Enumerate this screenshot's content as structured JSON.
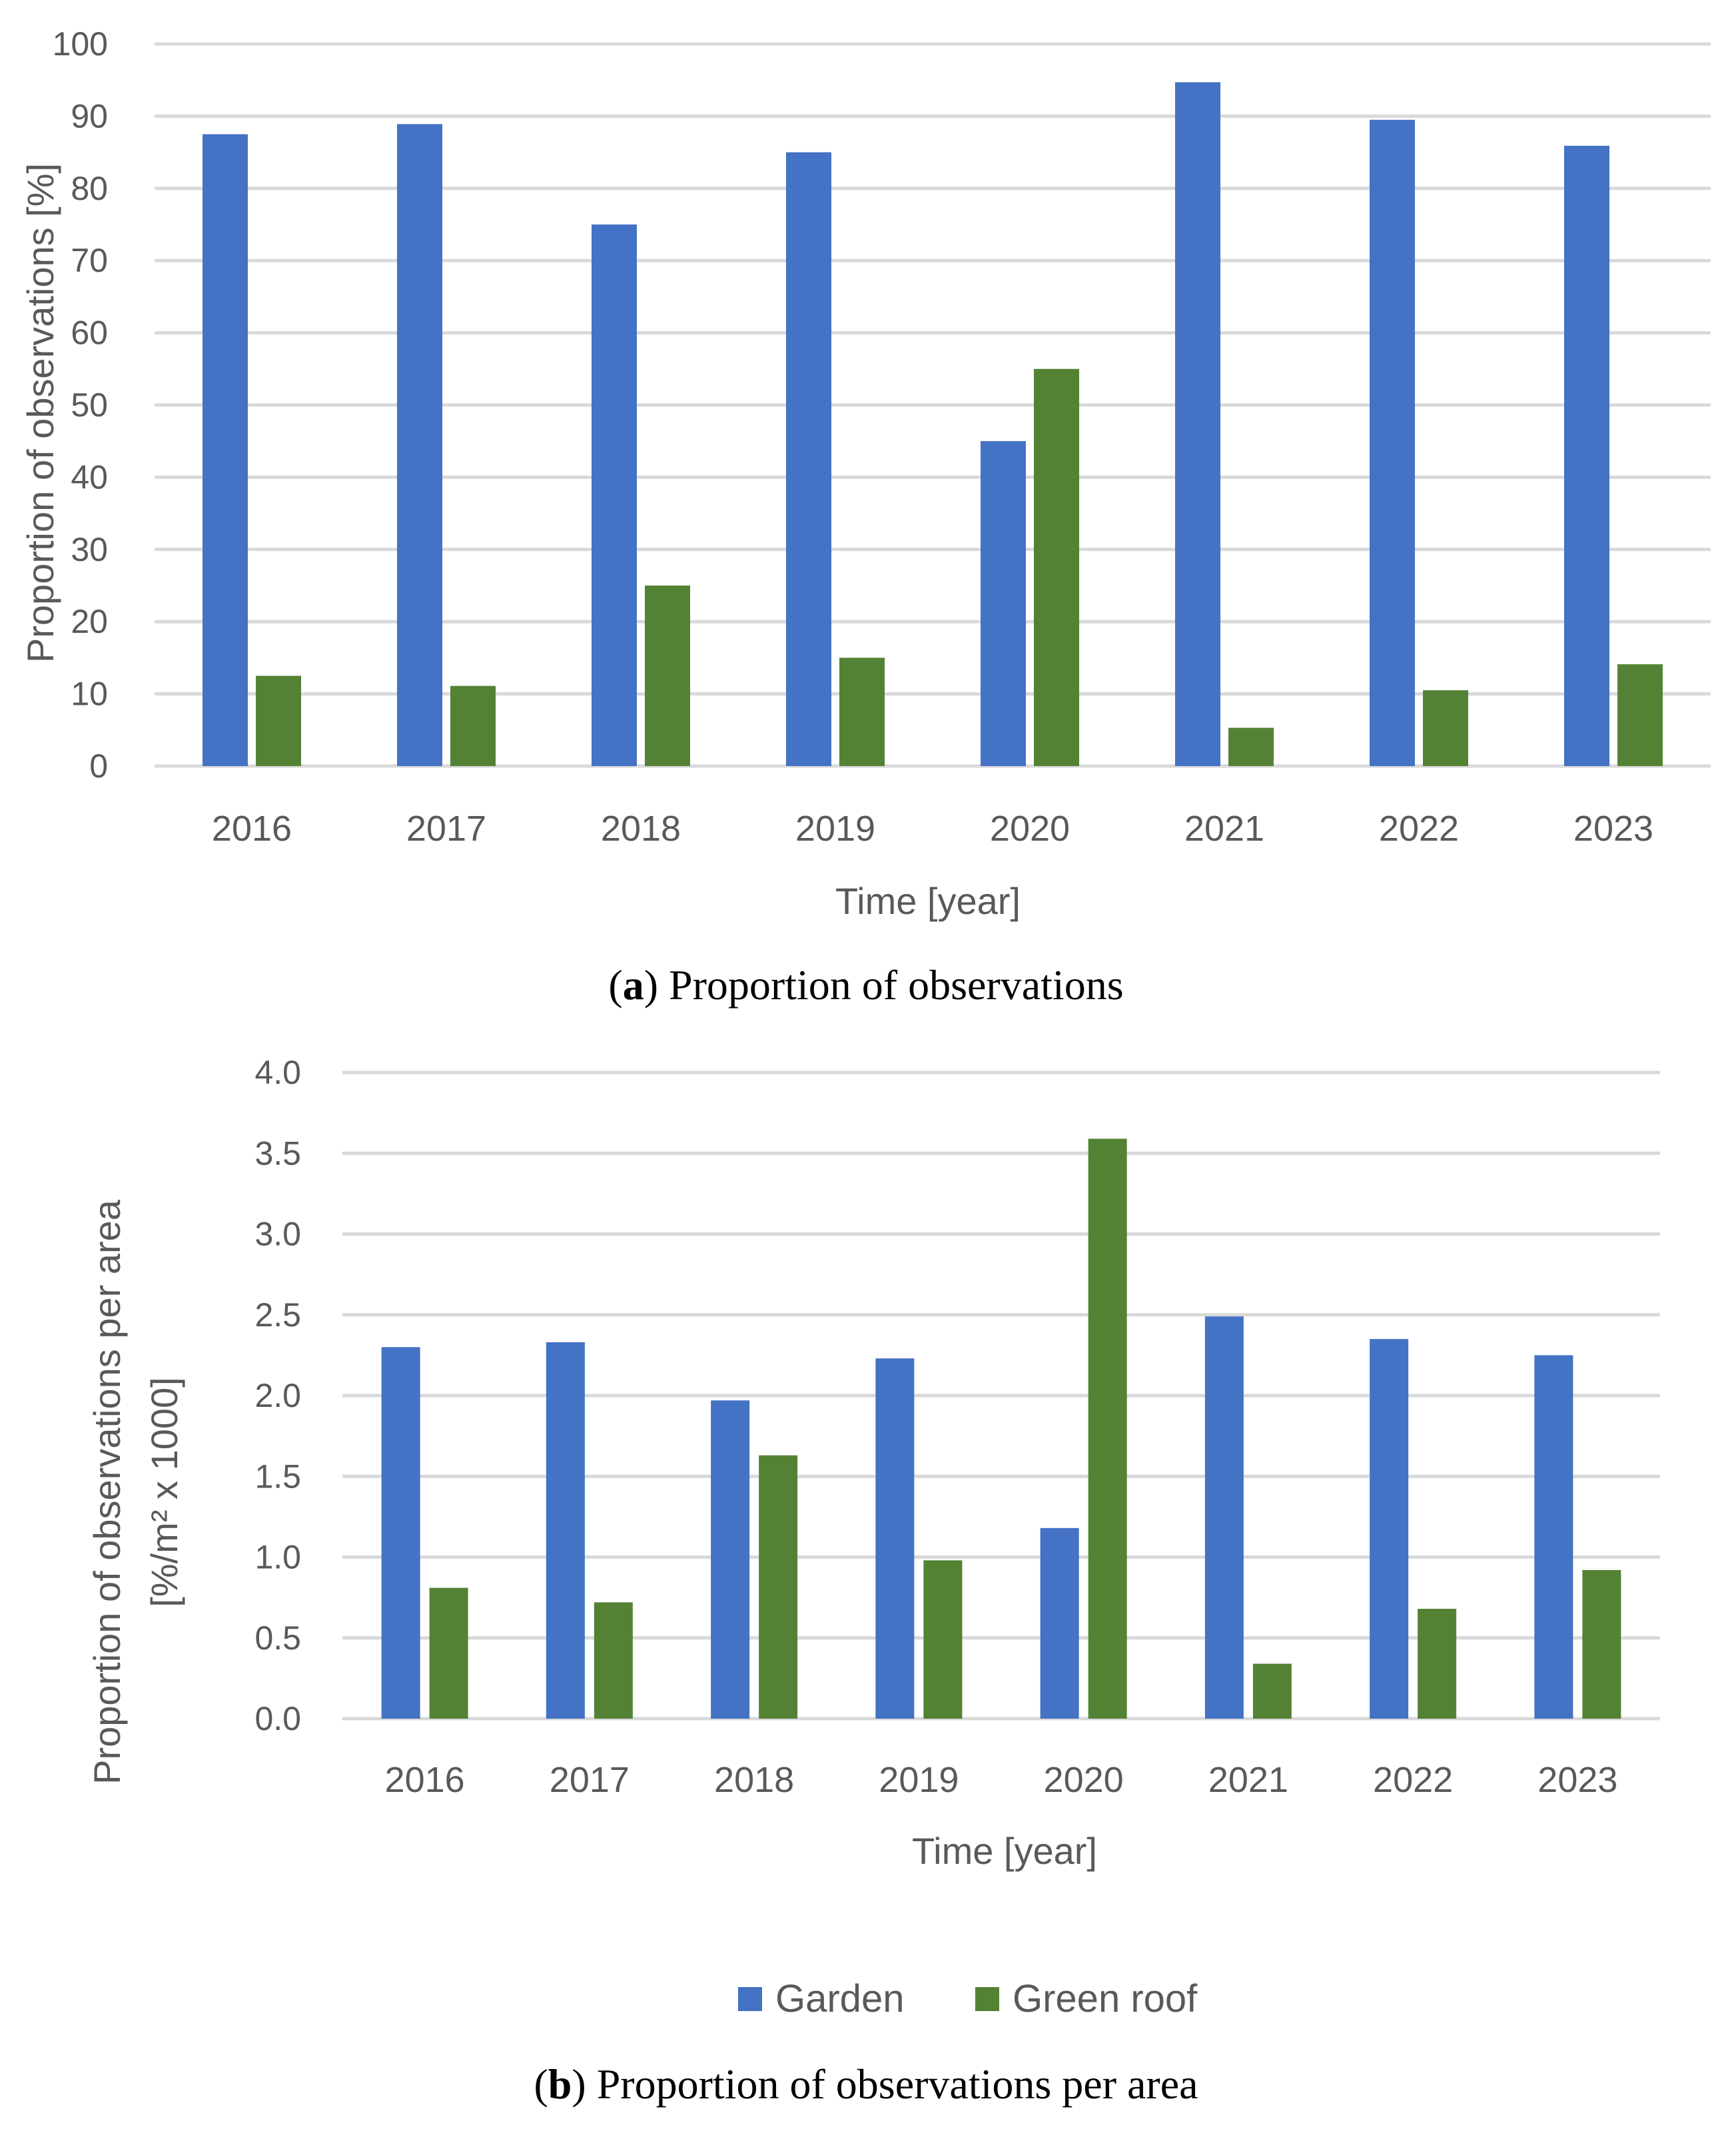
{
  "colors": {
    "garden": "#4472c4",
    "green_roof": "#548235",
    "grid": "#d9d9d9",
    "text": "#595959"
  },
  "legend": {
    "garden_label": "Garden",
    "green_roof_label": "Green roof"
  },
  "chart_data": [
    {
      "type": "bar",
      "id": "a",
      "categories": [
        "2016",
        "2017",
        "2018",
        "2019",
        "2020",
        "2021",
        "2022",
        "2023"
      ],
      "series": [
        {
          "name": "Garden",
          "values": [
            87.5,
            88.9,
            75,
            85,
            45,
            94.7,
            89.5,
            85.9
          ]
        },
        {
          "name": "Green roof",
          "values": [
            12.5,
            11.1,
            25,
            15,
            55,
            5.3,
            10.5,
            14.1
          ]
        }
      ],
      "ylim": [
        0,
        100
      ],
      "yticks": [
        "0",
        "10",
        "20",
        "30",
        "40",
        "50",
        "60",
        "70",
        "80",
        "90",
        "100"
      ],
      "xlabel": "Time [year]",
      "ylabel": "Proportion of observations [%]",
      "caption_letter": "a",
      "caption_text": "Proportion of observations"
    },
    {
      "type": "bar",
      "id": "b",
      "categories": [
        "2016",
        "2017",
        "2018",
        "2019",
        "2020",
        "2021",
        "2022",
        "2023"
      ],
      "series": [
        {
          "name": "Garden",
          "values": [
            2.3,
            2.33,
            1.97,
            2.23,
            1.18,
            2.49,
            2.35,
            2.25
          ]
        },
        {
          "name": "Green roof",
          "values": [
            0.81,
            0.72,
            1.63,
            0.98,
            3.59,
            0.34,
            0.68,
            0.92
          ]
        }
      ],
      "ylim": [
        0,
        4
      ],
      "yticks": [
        "0.0",
        "0.5",
        "1.0",
        "1.5",
        "2.0",
        "2.5",
        "3.0",
        "3.5",
        "4.0"
      ],
      "xlabel": "Time [year]",
      "ylabel_line1": "Proportion of observations per area",
      "ylabel_line2": "[%/m² x 1000]",
      "caption_letter": "b",
      "caption_text": "Proportion of observations per area"
    }
  ]
}
